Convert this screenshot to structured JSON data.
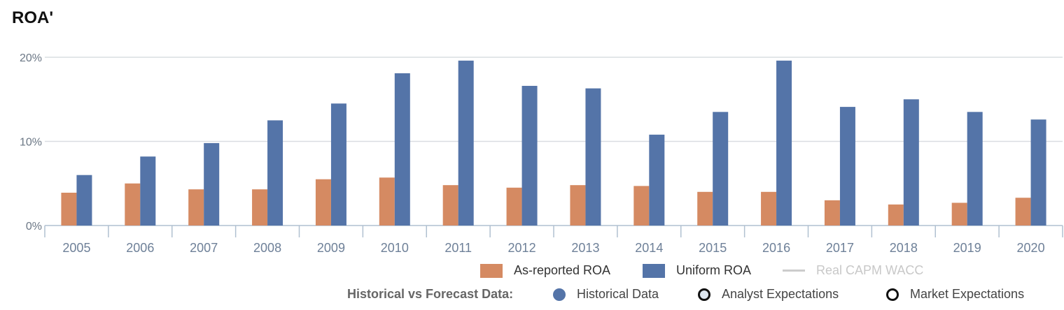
{
  "title": "ROA'",
  "colors": {
    "as_reported": "#d58a62",
    "uniform": "#5474a8",
    "wacc": "#cccccc",
    "grid": "#d9dde2",
    "axis": "#b0c0d0"
  },
  "chart_data": {
    "type": "bar",
    "categories": [
      "2005",
      "2006",
      "2007",
      "2008",
      "2009",
      "2010",
      "2011",
      "2012",
      "2013",
      "2014",
      "2015",
      "2016",
      "2017",
      "2018",
      "2019",
      "2020"
    ],
    "series": [
      {
        "name": "As-reported ROA",
        "values": [
          3.9,
          5.0,
          4.3,
          4.3,
          5.5,
          5.7,
          4.8,
          4.5,
          4.8,
          4.7,
          4.0,
          4.0,
          3.0,
          2.5,
          2.7,
          3.3
        ]
      },
      {
        "name": "Uniform ROA",
        "values": [
          6.0,
          8.2,
          9.8,
          12.5,
          14.5,
          18.1,
          19.6,
          16.6,
          16.3,
          10.8,
          13.5,
          19.6,
          14.1,
          15.0,
          13.5,
          12.6
        ]
      }
    ],
    "yticks": [
      "0%",
      "10%",
      "20%"
    ],
    "ylim": [
      0,
      20
    ],
    "grid": true,
    "legend_position": "bottom"
  },
  "legend": {
    "as_reported": "As-reported ROA",
    "uniform": "Uniform ROA",
    "wacc": "Real CAPM WACC"
  },
  "forecast_legend": {
    "label": "Historical vs Forecast Data:",
    "historical": "Historical Data",
    "analyst": "Analyst Expectations",
    "market": "Market Expectations"
  }
}
